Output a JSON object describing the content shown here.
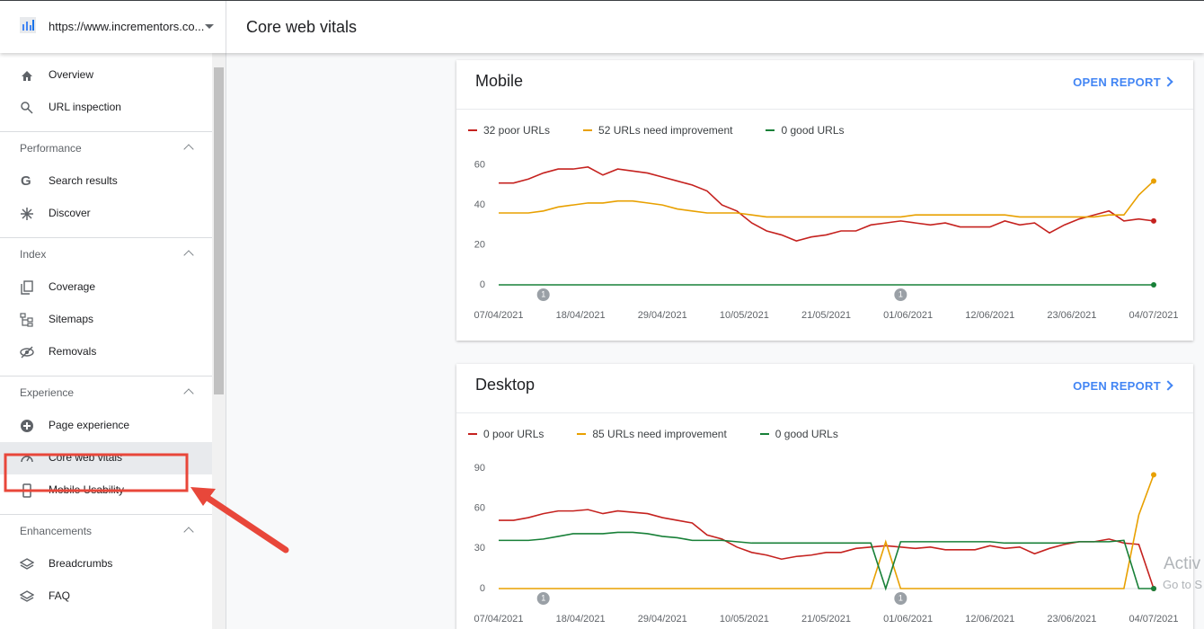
{
  "header": {
    "site": "https://www.incrementors.co...",
    "title": "Core web vitals"
  },
  "nav": {
    "top": [
      "Overview",
      "URL inspection"
    ],
    "sections": [
      {
        "title": "Performance",
        "items": [
          "Search results",
          "Discover"
        ]
      },
      {
        "title": "Index",
        "items": [
          "Coverage",
          "Sitemaps",
          "Removals"
        ]
      },
      {
        "title": "Experience",
        "items": [
          "Page experience",
          "Core web vitals",
          "Mobile Usability"
        ]
      },
      {
        "title": "Enhancements",
        "items": [
          "Breadcrumbs",
          "FAQ"
        ]
      }
    ],
    "selected": "Core web vitals"
  },
  "chart_data": [
    {
      "type": "line",
      "title": "Mobile",
      "link": "OPEN REPORT",
      "x": [
        0,
        2,
        4,
        6,
        8,
        10,
        12,
        14,
        16,
        18,
        20,
        22,
        24,
        26,
        28,
        30,
        32,
        34,
        36,
        38,
        40,
        42,
        44,
        46,
        48,
        50,
        52,
        54,
        56,
        58,
        60,
        62,
        64,
        66,
        68,
        70,
        72,
        74,
        76,
        78,
        80,
        82,
        84,
        86,
        88
      ],
      "xlim": [
        0,
        88
      ],
      "xticks": [
        {
          "value": 0,
          "label": "07/04/2021"
        },
        {
          "value": 11,
          "label": "18/04/2021"
        },
        {
          "value": 22,
          "label": "29/04/2021"
        },
        {
          "value": 33,
          "label": "10/05/2021"
        },
        {
          "value": 44,
          "label": "21/05/2021"
        },
        {
          "value": 55,
          "label": "01/06/2021"
        },
        {
          "value": 66,
          "label": "12/06/2021"
        },
        {
          "value": 77,
          "label": "23/06/2021"
        },
        {
          "value": 88,
          "label": "04/07/2021"
        }
      ],
      "ylim": [
        0,
        63
      ],
      "yticks": [
        0,
        20,
        40,
        60
      ],
      "grid": false,
      "annotations": [
        {
          "x": 6,
          "label": "1"
        },
        {
          "x": 54,
          "label": "1"
        }
      ],
      "series": [
        {
          "name": "32 poor URLs",
          "color": "#c5221f",
          "values": [
            51,
            51,
            53,
            56,
            58,
            58,
            59,
            55,
            58,
            57,
            56,
            54,
            52,
            50,
            47,
            40,
            37,
            31,
            27,
            25,
            22,
            24,
            25,
            27,
            27,
            30,
            31,
            32,
            31,
            30,
            31,
            29,
            29,
            29,
            32,
            30,
            31,
            26,
            30,
            33,
            35,
            37,
            32,
            33,
            32
          ]
        },
        {
          "name": "52 URLs need improvement",
          "color": "#e8a000",
          "values": [
            36,
            36,
            36,
            37,
            39,
            40,
            41,
            41,
            42,
            42,
            41,
            40,
            38,
            37,
            36,
            36,
            36,
            35,
            34,
            34,
            34,
            34,
            34,
            34,
            34,
            34,
            34,
            34,
            35,
            35,
            35,
            35,
            35,
            35,
            35,
            34,
            34,
            34,
            34,
            34,
            34,
            35,
            35,
            45,
            52
          ]
        },
        {
          "name": "0 good URLs",
          "color": "#188038",
          "values": [
            0,
            0,
            0,
            0,
            0,
            0,
            0,
            0,
            0,
            0,
            0,
            0,
            0,
            0,
            0,
            0,
            0,
            0,
            0,
            0,
            0,
            0,
            0,
            0,
            0,
            0,
            0,
            0,
            0,
            0,
            0,
            0,
            0,
            0,
            0,
            0,
            0,
            0,
            0,
            0,
            0,
            0,
            0,
            0,
            0
          ]
        }
      ]
    },
    {
      "type": "line",
      "title": "Desktop",
      "link": "OPEN REPORT",
      "x": [
        0,
        2,
        4,
        6,
        8,
        10,
        12,
        14,
        16,
        18,
        20,
        22,
        24,
        26,
        28,
        30,
        32,
        34,
        36,
        38,
        40,
        42,
        44,
        46,
        48,
        50,
        52,
        54,
        56,
        58,
        60,
        62,
        64,
        66,
        68,
        70,
        72,
        74,
        76,
        78,
        80,
        82,
        84,
        86,
        88
      ],
      "xlim": [
        0,
        88
      ],
      "xticks": [
        {
          "value": 0,
          "label": "07/04/2021"
        },
        {
          "value": 11,
          "label": "18/04/2021"
        },
        {
          "value": 22,
          "label": "29/04/2021"
        },
        {
          "value": 33,
          "label": "10/05/2021"
        },
        {
          "value": 44,
          "label": "21/05/2021"
        },
        {
          "value": 55,
          "label": "01/06/2021"
        },
        {
          "value": 66,
          "label": "12/06/2021"
        },
        {
          "value": 77,
          "label": "23/06/2021"
        },
        {
          "value": 88,
          "label": "04/07/2021"
        }
      ],
      "ylim": [
        0,
        94
      ],
      "yticks": [
        0,
        30,
        60,
        90
      ],
      "grid": false,
      "annotations": [
        {
          "x": 6,
          "label": "1"
        },
        {
          "x": 54,
          "label": "1"
        }
      ],
      "series": [
        {
          "name": "0 poor URLs",
          "color": "#c5221f",
          "values": [
            51,
            51,
            53,
            56,
            58,
            58,
            59,
            56,
            58,
            57,
            56,
            53,
            51,
            49,
            40,
            37,
            31,
            27,
            25,
            22,
            24,
            25,
            27,
            27,
            30,
            31,
            32,
            31,
            30,
            31,
            29,
            29,
            29,
            32,
            30,
            31,
            26,
            30,
            33,
            35,
            35,
            37,
            34,
            33,
            0
          ]
        },
        {
          "name": "85 URLs need improvement",
          "color": "#e8a000",
          "values": [
            0,
            0,
            0,
            0,
            0,
            0,
            0,
            0,
            0,
            0,
            0,
            0,
            0,
            0,
            0,
            0,
            0,
            0,
            0,
            0,
            0,
            0,
            0,
            0,
            0,
            0,
            35,
            0,
            0,
            0,
            0,
            0,
            0,
            0,
            0,
            0,
            0,
            0,
            0,
            0,
            0,
            0,
            0,
            55,
            85
          ]
        },
        {
          "name": "0 good URLs",
          "color": "#188038",
          "values": [
            36,
            36,
            36,
            37,
            39,
            41,
            41,
            41,
            42,
            42,
            41,
            39,
            38,
            36,
            36,
            36,
            35,
            34,
            34,
            34,
            34,
            34,
            34,
            34,
            34,
            34,
            0,
            35,
            35,
            35,
            35,
            35,
            35,
            35,
            34,
            34,
            34,
            34,
            34,
            35,
            35,
            35,
            36,
            0,
            0
          ]
        }
      ]
    }
  ],
  "watermark": [
    "Activ",
    "Go to S"
  ]
}
